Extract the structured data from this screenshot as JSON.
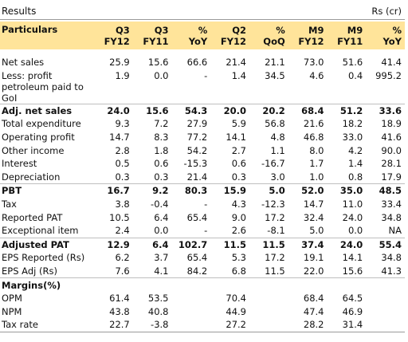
{
  "header": {
    "title": "Results",
    "unit": "Rs (cr)"
  },
  "columns": [
    {
      "line1": "Particulars",
      "line2": ""
    },
    {
      "line1": "Q3",
      "line2": "FY12"
    },
    {
      "line1": "Q3",
      "line2": "FY11"
    },
    {
      "line1": "%",
      "line2": "YoY"
    },
    {
      "line1": "Q2",
      "line2": "FY12"
    },
    {
      "line1": "%",
      "line2": "QoQ"
    },
    {
      "line1": "M9",
      "line2": "FY12"
    },
    {
      "line1": "M9",
      "line2": "FY11"
    },
    {
      "line1": "%",
      "line2": "YoY"
    }
  ],
  "rows": [
    {
      "label": "Net sales",
      "values": [
        "25.9",
        "15.6",
        "66.6",
        "21.4",
        "21.1",
        "73.0",
        "51.6",
        "41.4"
      ]
    },
    {
      "label": "Less: profit petroleum paid to GoI",
      "values": [
        "1.9",
        "0.0",
        "-",
        "1.4",
        "34.5",
        "4.6",
        "0.4",
        "995.2"
      ]
    },
    {
      "label": "Adj. net sales",
      "values": [
        "24.0",
        "15.6",
        "54.3",
        "20.0",
        "20.2",
        "68.4",
        "51.2",
        "33.6"
      ]
    },
    {
      "label": "Total expenditure",
      "values": [
        "9.3",
        "7.2",
        "27.9",
        "5.9",
        "56.8",
        "21.6",
        "18.2",
        "18.9"
      ]
    },
    {
      "label": "Operating profit",
      "values": [
        "14.7",
        "8.3",
        "77.2",
        "14.1",
        "4.8",
        "46.8",
        "33.0",
        "41.6"
      ]
    },
    {
      "label": "Other income",
      "values": [
        "2.8",
        "1.8",
        "54.2",
        "2.7",
        "1.1",
        "8.0",
        "4.2",
        "90.0"
      ]
    },
    {
      "label": "Interest",
      "values": [
        "0.5",
        "0.6",
        "-15.3",
        "0.6",
        "-16.7",
        "1.7",
        "1.4",
        "28.1"
      ]
    },
    {
      "label": "Depreciation",
      "values": [
        "0.3",
        "0.3",
        "21.4",
        "0.3",
        "3.0",
        "1.0",
        "0.8",
        "17.9"
      ]
    },
    {
      "label": "PBT",
      "values": [
        "16.7",
        "9.2",
        "80.3",
        "15.9",
        "5.0",
        "52.0",
        "35.0",
        "48.5"
      ]
    },
    {
      "label": "Tax",
      "values": [
        "3.8",
        "-0.4",
        "-",
        "4.3",
        "-12.3",
        "14.7",
        "11.0",
        "33.4"
      ]
    },
    {
      "label": "Reported PAT",
      "values": [
        "10.5",
        "6.4",
        "65.4",
        "9.0",
        "17.2",
        "32.4",
        "24.0",
        "34.8"
      ]
    },
    {
      "label": "Exceptional item",
      "values": [
        "2.4",
        "0.0",
        "-",
        "2.6",
        "-8.1",
        "5.0",
        "0.0",
        "NA"
      ]
    },
    {
      "label": "Adjusted PAT",
      "values": [
        "12.9",
        "6.4",
        "102.7",
        "11.5",
        "11.5",
        "37.4",
        "24.0",
        "55.4"
      ]
    },
    {
      "label": "EPS Reported (Rs)",
      "values": [
        "6.2",
        "3.7",
        "65.4",
        "5.3",
        "17.2",
        "19.1",
        "14.1",
        "34.8"
      ]
    },
    {
      "label": "EPS Adj (Rs)",
      "values": [
        "7.6",
        "4.1",
        "84.2",
        "6.8",
        "11.5",
        "22.0",
        "15.6",
        "41.3"
      ]
    },
    {
      "label": "Margins(%)",
      "values": [
        "",
        "",
        "",
        "",
        "",
        "",
        "",
        ""
      ]
    },
    {
      "label": "OPM",
      "values": [
        "61.4",
        "53.5",
        "",
        "70.4",
        "",
        "68.4",
        "64.5",
        ""
      ]
    },
    {
      "label": "NPM",
      "values": [
        "43.8",
        "40.8",
        "",
        "44.9",
        "",
        "47.4",
        "46.9",
        ""
      ]
    },
    {
      "label": "Tax rate",
      "values": [
        "22.7",
        "-3.8",
        "",
        "27.2",
        "",
        "28.2",
        "31.4",
        ""
      ]
    }
  ]
}
